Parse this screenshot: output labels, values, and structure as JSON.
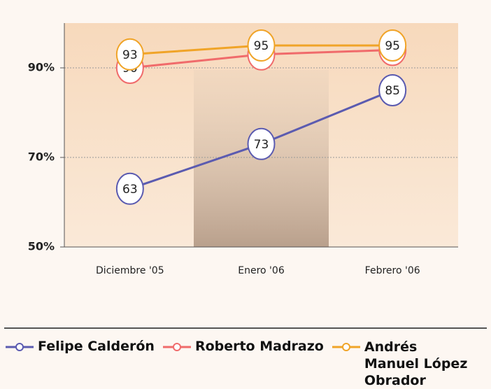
{
  "chart_data": {
    "type": "line",
    "categories": [
      "Diciembre '05",
      "Enero '06",
      "Febrero '06"
    ],
    "series": [
      {
        "name": "Felipe Calderón",
        "color": "#5b5bb0",
        "values": [
          63,
          73,
          85
        ]
      },
      {
        "name": "Roberto Madrazo",
        "color": "#f06b6b",
        "values": [
          90,
          93,
          94
        ]
      },
      {
        "name": "Andrés Manuel López Obrador",
        "color": "#f0a428",
        "values": [
          93,
          95,
          95
        ]
      }
    ],
    "ylim": [
      50,
      100
    ],
    "yticks": [
      {
        "value": 50,
        "label": "50%"
      },
      {
        "value": 70,
        "label": "70%"
      },
      {
        "value": 90,
        "label": "90%"
      }
    ],
    "grid": true,
    "legend": "bottom"
  }
}
